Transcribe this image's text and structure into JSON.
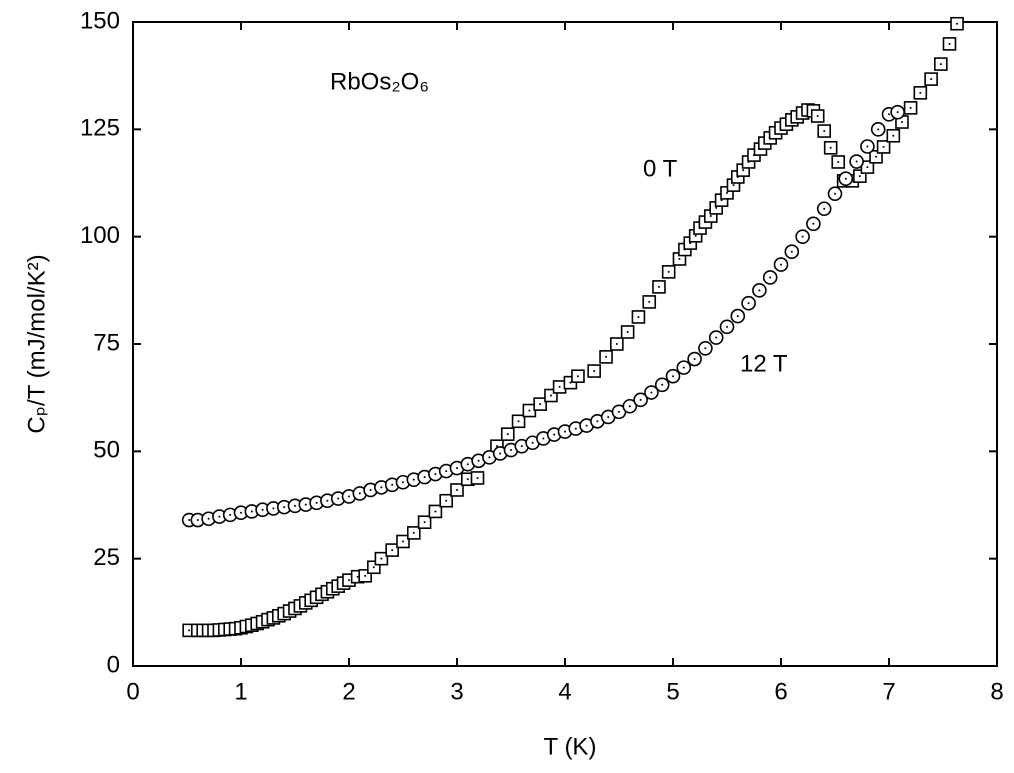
{
  "chart_data": {
    "type": "scatter",
    "xlabel": "T (K)",
    "ylabel": "Cₚ/T (mJ/mol/K²)",
    "annotations": [
      "RbOs₂O₆"
    ],
    "xlim": [
      0,
      8
    ],
    "xticks": [
      0,
      1,
      2,
      3,
      4,
      5,
      6,
      7,
      8
    ],
    "ylim": [
      0,
      150
    ],
    "yticks": [
      0,
      25,
      50,
      75,
      100,
      125,
      150
    ],
    "series": [
      {
        "name": "0 T",
        "marker": "square",
        "color": "#000000",
        "x": [
          0.52,
          0.6,
          0.65,
          0.7,
          0.75,
          0.8,
          0.85,
          0.9,
          0.95,
          1.0,
          1.05,
          1.1,
          1.15,
          1.2,
          1.25,
          1.3,
          1.35,
          1.4,
          1.45,
          1.5,
          1.55,
          1.6,
          1.65,
          1.7,
          1.75,
          1.8,
          1.85,
          1.9,
          1.95,
          2.0,
          2.08,
          2.15,
          2.23,
          2.3,
          2.4,
          2.5,
          2.6,
          2.7,
          2.8,
          2.9,
          3.0,
          3.1,
          3.19,
          3.37,
          3.47,
          3.57,
          3.67,
          3.77,
          3.87,
          3.95,
          4.05,
          4.12,
          4.27,
          4.38,
          4.48,
          4.58,
          4.68,
          4.78,
          4.87,
          4.96,
          5.06,
          5.11,
          5.16,
          5.21,
          5.25,
          5.3,
          5.35,
          5.4,
          5.45,
          5.5,
          5.56,
          5.6,
          5.65,
          5.7,
          5.75,
          5.81,
          5.85,
          5.9,
          5.95,
          6.0,
          6.05,
          6.1,
          6.15,
          6.2,
          6.25,
          6.3,
          6.34,
          6.4,
          6.46,
          6.53,
          6.58,
          6.66,
          6.73,
          6.8,
          6.88,
          6.95,
          7.04,
          7.12,
          7.2,
          7.29,
          7.39,
          7.48,
          7.56,
          7.63
        ],
        "values": [
          8.3,
          8.3,
          8.3,
          8.3,
          8.3,
          8.4,
          8.5,
          8.6,
          8.7,
          8.9,
          9.2,
          9.5,
          9.9,
          10.3,
          10.8,
          11.2,
          11.7,
          12.2,
          12.8,
          13.4,
          14,
          14.7,
          15.3,
          16,
          16.7,
          17.3,
          18,
          18.6,
          19.3,
          20,
          20.8,
          21,
          23,
          25,
          27,
          29,
          31,
          33.5,
          36,
          38.5,
          41,
          43.5,
          43.8,
          51.2,
          54,
          57,
          59.5,
          61,
          63,
          65,
          66,
          67.5,
          68.7,
          72,
          75,
          77.8,
          81.3,
          84.8,
          88.3,
          91.8,
          94.8,
          97,
          98.5,
          100.2,
          102,
          103.4,
          104.8,
          106.7,
          108.5,
          110.2,
          112,
          113.9,
          115.5,
          117.4,
          119,
          120.4,
          121.8,
          123,
          124.2,
          125.3,
          126.2,
          127.2,
          127.9,
          128.8,
          129.5,
          129.3,
          128.1,
          124.6,
          120.7,
          117.4,
          113,
          113,
          114.1,
          116.2,
          118.6,
          120.9,
          123.5,
          126.7,
          130,
          133.5,
          136.7,
          140.2,
          144.9,
          149.6
        ]
      },
      {
        "name": "12 T",
        "marker": "circle",
        "color": "#000000",
        "x": [
          0.52,
          0.6,
          0.7,
          0.8,
          0.9,
          1.0,
          1.1,
          1.2,
          1.3,
          1.4,
          1.5,
          1.6,
          1.7,
          1.8,
          1.9,
          2.0,
          2.1,
          2.2,
          2.3,
          2.4,
          2.5,
          2.6,
          2.7,
          2.8,
          2.9,
          3.0,
          3.1,
          3.2,
          3.3,
          3.4,
          3.5,
          3.6,
          3.7,
          3.8,
          3.9,
          4.0,
          4.1,
          4.2,
          4.3,
          4.4,
          4.5,
          4.6,
          4.7,
          4.8,
          4.9,
          5.0,
          5.1,
          5.2,
          5.3,
          5.4,
          5.5,
          5.6,
          5.7,
          5.8,
          5.9,
          6.0,
          6.1,
          6.2,
          6.3,
          6.4,
          6.5,
          6.6,
          6.7,
          6.8,
          6.9,
          7.0,
          7.08
        ],
        "values": [
          34,
          34,
          34.3,
          34.8,
          35.2,
          35.7,
          36,
          36.4,
          36.7,
          37,
          37.3,
          37.6,
          38,
          38.5,
          39,
          39.5,
          40.2,
          41,
          41.6,
          42.2,
          42.8,
          43.4,
          44,
          44.7,
          45.4,
          46.1,
          47,
          47.8,
          48.6,
          49.5,
          50.3,
          51.2,
          52,
          53,
          53.9,
          54.6,
          55.3,
          56,
          57,
          58,
          59.2,
          60.5,
          62,
          63.7,
          65.5,
          67.5,
          69.5,
          71.5,
          74,
          76.5,
          79,
          81.5,
          84.5,
          87.5,
          90.5,
          93.5,
          96.5,
          100,
          103,
          106.5,
          110,
          113.5,
          117.5,
          121,
          125,
          128.5,
          129
        ]
      }
    ]
  }
}
